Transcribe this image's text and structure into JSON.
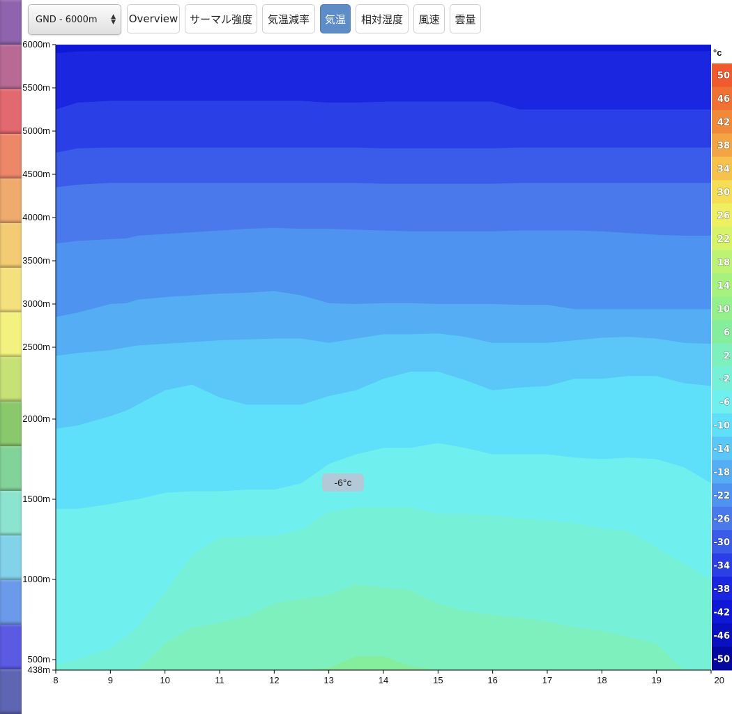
{
  "toolbar": {
    "range_select": "GND - 6000m",
    "buttons": [
      {
        "label": "Overview",
        "active": false
      },
      {
        "label": "サーマル強度",
        "active": false
      },
      {
        "label": "気温減率",
        "active": false
      },
      {
        "label": "気温",
        "active": true
      },
      {
        "label": "相対湿度",
        "active": false
      },
      {
        "label": "風速",
        "active": false
      },
      {
        "label": "雲量",
        "active": false
      }
    ]
  },
  "side_strip_colors": [
    "#8f63ad",
    "#b86a94",
    "#e2696f",
    "#ec8768",
    "#efaa6d",
    "#f2cb72",
    "#f4e07c",
    "#f3f27e",
    "#c6e176",
    "#89c96c",
    "#82d39a",
    "#8be3d0",
    "#82d3ea",
    "#6b9aea",
    "#5a5ae2",
    "#5e65b2"
  ],
  "tooltip": "-6°c",
  "chart_data": {
    "type": "heatmap",
    "title": "",
    "x_ticks": [
      "8",
      "9",
      "10",
      "11",
      "12",
      "13",
      "14",
      "15",
      "16",
      "17",
      "18",
      "19",
      "20"
    ],
    "y_ticks": [
      "6000m",
      "5500m",
      "5000m",
      "4500m",
      "4000m",
      "3500m",
      "3000m",
      "2500m",
      "2000m",
      "1500m",
      "1000m",
      "500m",
      "438m"
    ],
    "y_tick_values": [
      6000,
      5500,
      5000,
      4500,
      4000,
      3500,
      3000,
      2500,
      2000,
      1500,
      1000,
      500,
      438
    ],
    "ylim": [
      438,
      6000
    ],
    "xlim": [
      8,
      20
    ],
    "legend": {
      "unit": "°c",
      "labels": [
        "50",
        "46",
        "42",
        "38",
        "34",
        "30",
        "26",
        "22",
        "18",
        "14",
        "10",
        "6",
        "2",
        "-2",
        "-6",
        "-10",
        "-14",
        "-18",
        "-22",
        "-26",
        "-30",
        "-34",
        "-38",
        "-42",
        "-46",
        "-50"
      ],
      "colors": [
        "#f05a2d",
        "#f07133",
        "#f08a3a",
        "#f3a545",
        "#f6c24c",
        "#f5de55",
        "#eef062",
        "#d6f36a",
        "#bdf374",
        "#a7f27e",
        "#93f08b",
        "#85ee9d",
        "#7ef0bd",
        "#77f0d8",
        "#6ff0ee",
        "#5ee0fb",
        "#5ac7f8",
        "#55adf4",
        "#4f93f0",
        "#4a79ec",
        "#3a5ce8",
        "#2a40e6",
        "#1a26e0",
        "#0f18d6",
        "#0a0fc0",
        "#05089e"
      ]
    },
    "x": [
      8,
      8.4,
      9,
      9.3,
      9.5,
      10,
      10.5,
      11,
      11.5,
      12,
      12.5,
      13,
      13.5,
      14,
      14.5,
      15,
      15.5,
      16,
      16.5,
      17,
      17.5,
      18,
      18.5,
      19,
      19.5,
      20
    ],
    "isotherms": [
      {
        "temp": "-38",
        "alt": [
          5900,
          5920,
          5925,
          5925,
          5925,
          5925,
          5925,
          5925,
          5925,
          5925,
          5925,
          5925,
          5925,
          5925,
          5925,
          5925,
          5925,
          5925,
          5925,
          5925,
          5925,
          5925,
          5925,
          5925,
          5925,
          5925
        ]
      },
      {
        "temp": "-34",
        "alt": [
          5250,
          5330,
          5350,
          5350,
          5350,
          5350,
          5350,
          5350,
          5350,
          5350,
          5350,
          5330,
          5330,
          5340,
          5340,
          5340,
          5340,
          5340,
          5250,
          5250,
          5250,
          5250,
          5250,
          5250,
          5250,
          5250
        ]
      },
      {
        "temp": "-30",
        "alt": [
          4750,
          4800,
          4810,
          4810,
          4810,
          4810,
          4810,
          4810,
          4810,
          4810,
          4810,
          4810,
          4810,
          4800,
          4800,
          4800,
          4800,
          4800,
          4810,
          4810,
          4810,
          4810,
          4810,
          4810,
          4810,
          4810
        ]
      },
      {
        "temp": "-26",
        "alt": [
          4350,
          4380,
          4400,
          4400,
          4400,
          4400,
          4400,
          4400,
          4400,
          4400,
          4400,
          4400,
          4400,
          4390,
          4390,
          4390,
          4390,
          4390,
          4400,
          4400,
          4400,
          4400,
          4400,
          4400,
          4400,
          4400
        ]
      },
      {
        "temp": "-22",
        "alt": [
          3700,
          3730,
          3750,
          3760,
          3790,
          3810,
          3830,
          3850,
          3870,
          3880,
          3870,
          3870,
          3860,
          3850,
          3840,
          3840,
          3840,
          3840,
          3850,
          3850,
          3850,
          3840,
          3820,
          3800,
          3790,
          3790
        ]
      },
      {
        "temp": "-18",
        "alt": [
          2850,
          2900,
          3000,
          3010,
          3050,
          3080,
          3100,
          3120,
          3130,
          3150,
          3100,
          3010,
          3000,
          3010,
          3010,
          3000,
          3000,
          3000,
          2990,
          2990,
          2940,
          2940,
          2940,
          2940,
          2940,
          2940
        ]
      },
      {
        "temp": "-14",
        "alt": [
          2440,
          2460,
          2480,
          2500,
          2520,
          2540,
          2560,
          2580,
          2590,
          2600,
          2600,
          2550,
          2600,
          2650,
          2650,
          2660,
          2620,
          2550,
          2550,
          2550,
          2580,
          2610,
          2620,
          2600,
          2550,
          2540
        ]
      },
      {
        "temp": "-10",
        "alt": [
          1940,
          1960,
          2020,
          2060,
          2100,
          2200,
          2240,
          2150,
          2100,
          2100,
          2100,
          2160,
          2200,
          2280,
          2330,
          2330,
          2270,
          2200,
          2220,
          2230,
          2280,
          2280,
          2300,
          2300,
          2250,
          2230
        ]
      },
      {
        "temp": "-6",
        "alt": [
          1440,
          1440,
          1470,
          1490,
          1500,
          1540,
          1550,
          1550,
          1560,
          1560,
          1600,
          1720,
          1780,
          1820,
          1820,
          1850,
          1820,
          1780,
          1780,
          1780,
          1760,
          1750,
          1760,
          1750,
          1700,
          1600
        ]
      },
      {
        "temp": "-2",
        "alt": [
          470,
          500,
          570,
          650,
          700,
          920,
          1150,
          1260,
          1270,
          1270,
          1310,
          1420,
          1450,
          1450,
          1450,
          1410,
          1410,
          1400,
          1380,
          1370,
          1350,
          1320,
          1300,
          1200,
          1100,
          1000
        ]
      },
      {
        "temp": "2",
        "alt": [
          438,
          438,
          438,
          438,
          438,
          600,
          700,
          730,
          770,
          850,
          880,
          900,
          970,
          950,
          930,
          850,
          800,
          780,
          760,
          740,
          700,
          680,
          640,
          600,
          438,
          438
        ]
      },
      {
        "temp": "6",
        "alt": [
          438,
          438,
          438,
          438,
          438,
          438,
          438,
          438,
          438,
          438,
          438,
          450,
          520,
          520,
          460,
          438,
          438,
          438,
          438,
          438,
          438,
          438,
          438,
          438,
          438,
          438
        ]
      }
    ]
  }
}
